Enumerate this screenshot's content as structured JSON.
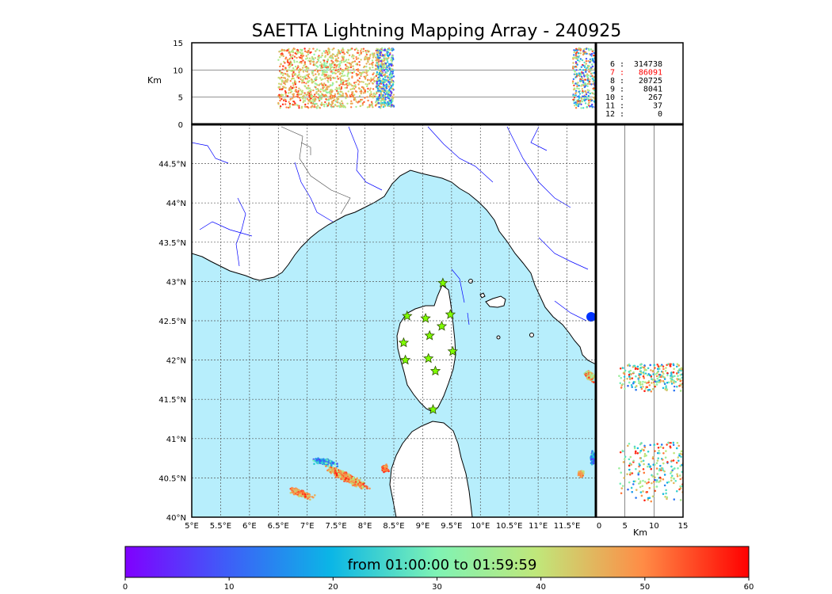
{
  "chart_data": {
    "type": "scatter",
    "title": "SAETTA Lightning Mapping Array - 240925",
    "top_panel": {
      "ylabel": "Km",
      "yticks": [
        "15",
        "10",
        "5",
        "0"
      ],
      "ylim": [
        0,
        15
      ]
    },
    "map_panel": {
      "xlim": [
        5,
        12
      ],
      "ylim": [
        40,
        45
      ],
      "xticks": [
        "5°E",
        "5.5°E",
        "6°E",
        "6.5°E",
        "7°E",
        "7.5°E",
        "8°E",
        "8.5°E",
        "9°E",
        "9.5°E",
        "10°E",
        "10.5°E",
        "11°E",
        "11.5°E"
      ],
      "yticks": [
        "40°N",
        "40.5°N",
        "41°N",
        "41.5°N",
        "42°N",
        "42.5°N",
        "43°N",
        "43.5°N",
        "44°N",
        "44.5°N"
      ],
      "stations": [
        {
          "lon": 9.35,
          "lat": 42.98
        },
        {
          "lon": 8.73,
          "lat": 42.56
        },
        {
          "lon": 9.05,
          "lat": 42.53
        },
        {
          "lon": 9.48,
          "lat": 42.58
        },
        {
          "lon": 9.33,
          "lat": 42.43
        },
        {
          "lon": 9.12,
          "lat": 42.31
        },
        {
          "lon": 8.67,
          "lat": 42.22
        },
        {
          "lon": 9.52,
          "lat": 42.11
        },
        {
          "lon": 8.7,
          "lat": 42.0
        },
        {
          "lon": 9.1,
          "lat": 42.02
        },
        {
          "lon": 9.22,
          "lat": 41.86
        },
        {
          "lon": 9.18,
          "lat": 41.37
        }
      ]
    },
    "side_panel": {
      "xlabel": "Km",
      "xticks": [
        "0",
        "5",
        "10",
        "15"
      ],
      "xlim": [
        0,
        15
      ]
    },
    "stats": [
      {
        "n": "6",
        "count": "314738",
        "color": "#000000"
      },
      {
        "n": "7",
        "count": "86091",
        "color": "#ff0000"
      },
      {
        "n": "8",
        "count": "20725",
        "color": "#000000"
      },
      {
        "n": "9",
        "count": "8041",
        "color": "#000000"
      },
      {
        "n": "10",
        "count": "267",
        "color": "#000000"
      },
      {
        "n": "11",
        "count": "37",
        "color": "#000000"
      },
      {
        "n": "12",
        "count": "0",
        "color": "#000000"
      }
    ],
    "colorbar": {
      "label": "from 01:00:00 to 01:59:59",
      "ticks": [
        "0",
        "10",
        "20",
        "30",
        "40",
        "50",
        "60"
      ],
      "range": [
        0,
        60
      ],
      "colormap": "rainbow"
    },
    "clusters": [
      {
        "lon": 7.7,
        "lat": 40.5,
        "t0": 38,
        "t1": 58
      },
      {
        "lon": 6.9,
        "lat": 40.3,
        "t0": 40,
        "t1": 58
      },
      {
        "lon": 7.3,
        "lat": 40.7,
        "t0": 5,
        "t1": 30
      },
      {
        "lon": 8.35,
        "lat": 40.62,
        "t0": 45,
        "t1": 58
      },
      {
        "lon": 11.9,
        "lat": 41.8,
        "t0": 30,
        "t1": 58
      },
      {
        "lon": 11.95,
        "lat": 40.75,
        "t0": 5,
        "t1": 25
      },
      {
        "lon": 11.75,
        "lat": 40.55,
        "t0": 40,
        "t1": 55
      }
    ],
    "colors": {
      "sea": "#b7eefc",
      "land": "#ffffff",
      "rivers": "#0000ff",
      "grid": "#555555",
      "station_fill": "#7fff00",
      "station_stroke": "#2f4f00"
    }
  }
}
